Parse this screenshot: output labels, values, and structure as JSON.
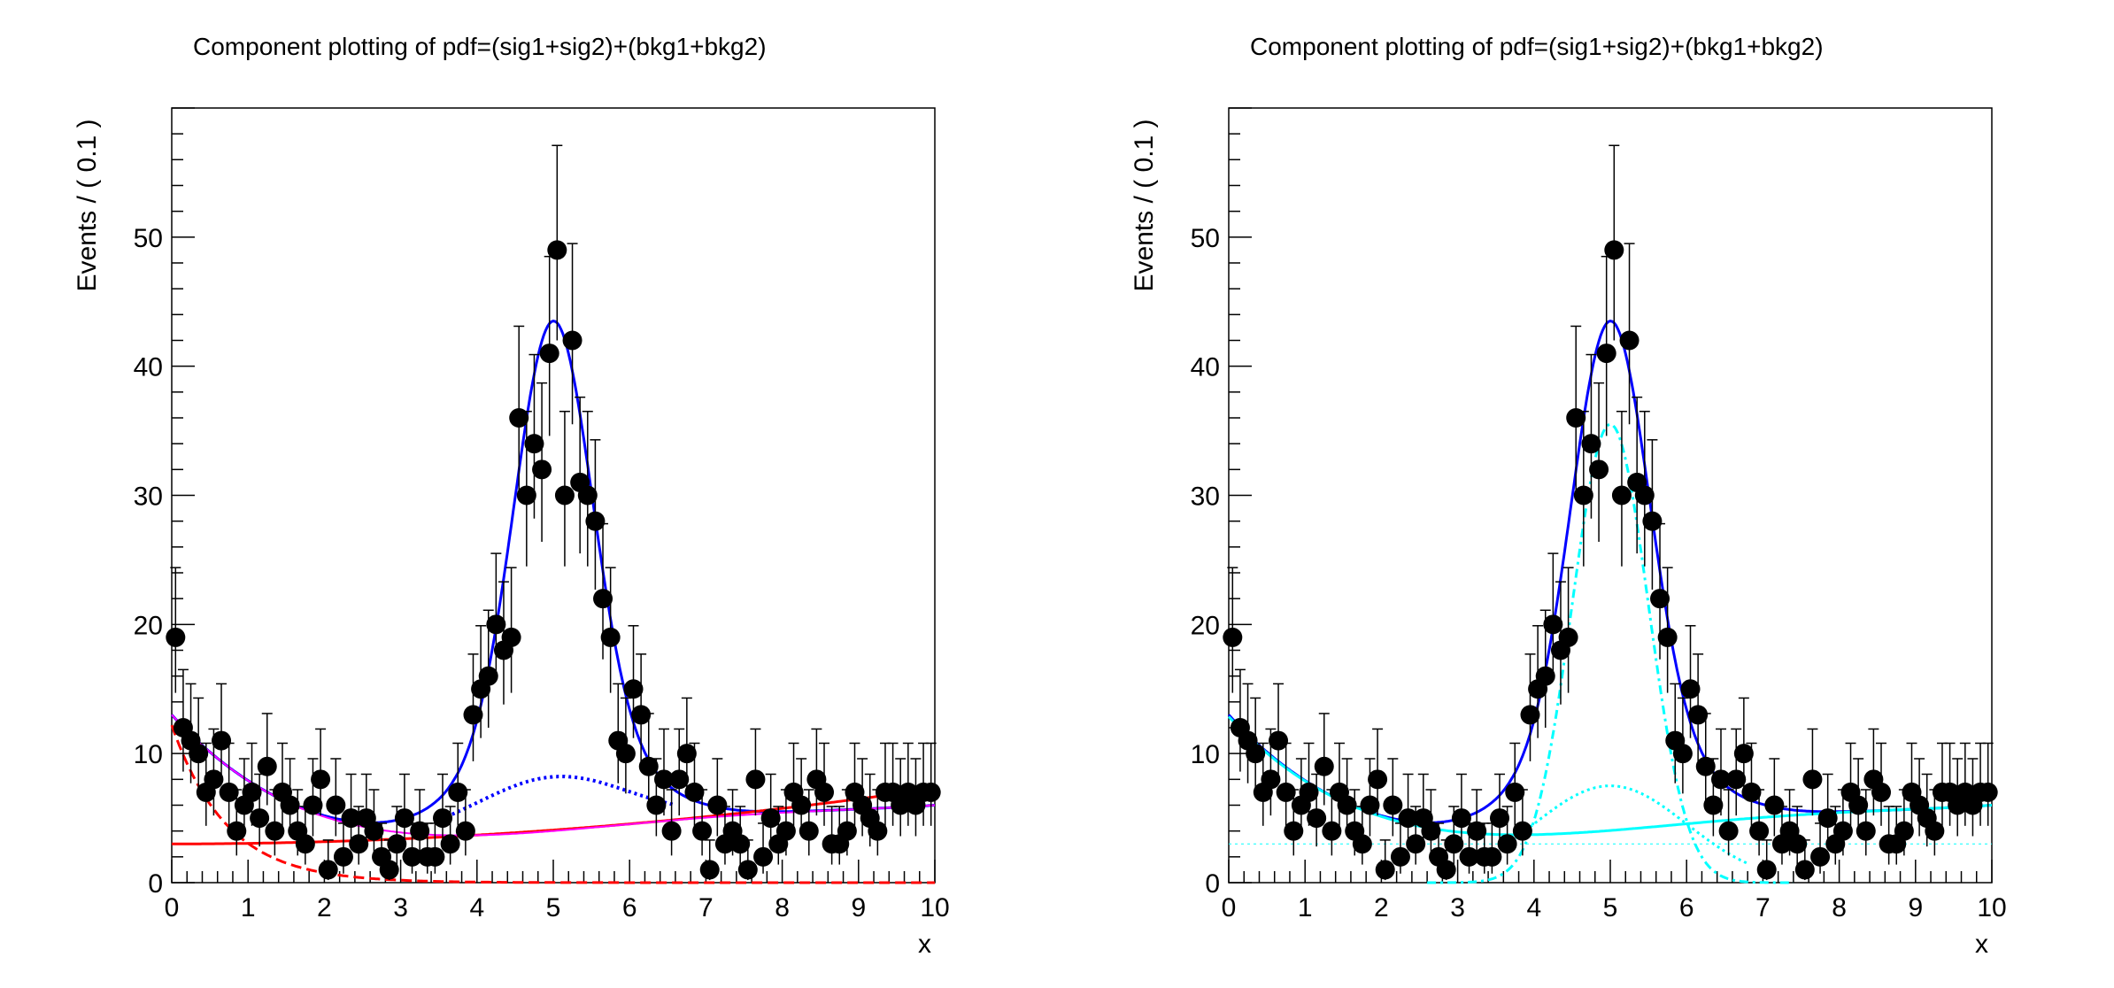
{
  "chart_data": [
    {
      "type": "scatter",
      "title": "Component plotting of pdf=(sig1+sig2)+(bkg1+bkg2)",
      "xlabel": "x",
      "ylabel": "Events / ( 0.1 )",
      "xlim": [
        0,
        10
      ],
      "ylim": [
        0,
        60
      ],
      "x_ticks": [
        "0",
        "1",
        "2",
        "3",
        "4",
        "5",
        "6",
        "7",
        "8",
        "9",
        "10"
      ],
      "y_ticks": [
        "0",
        "10",
        "20",
        "30",
        "40",
        "50"
      ],
      "grid": false,
      "legend": "none",
      "data": {
        "name": "data",
        "x": [
          0.05,
          0.15,
          0.25,
          0.35,
          0.45,
          0.55,
          0.65,
          0.75,
          0.85,
          0.95,
          1.05,
          1.15,
          1.25,
          1.35,
          1.45,
          1.55,
          1.65,
          1.75,
          1.85,
          1.95,
          2.05,
          2.15,
          2.25,
          2.35,
          2.45,
          2.55,
          2.65,
          2.75,
          2.85,
          2.95,
          3.05,
          3.15,
          3.25,
          3.35,
          3.45,
          3.55,
          3.65,
          3.75,
          3.85,
          3.95,
          4.05,
          4.15,
          4.25,
          4.35,
          4.45,
          4.55,
          4.65,
          4.75,
          4.85,
          4.95,
          5.05,
          5.15,
          5.25,
          5.35,
          5.45,
          5.55,
          5.65,
          5.75,
          5.85,
          5.95,
          6.05,
          6.15,
          6.25,
          6.35,
          6.45,
          6.55,
          6.65,
          6.75,
          6.85,
          6.95,
          7.05,
          7.15,
          7.25,
          7.35,
          7.45,
          7.55,
          7.65,
          7.75,
          7.85,
          7.95,
          8.05,
          8.15,
          8.25,
          8.35,
          8.45,
          8.55,
          8.65,
          8.75,
          8.85,
          8.95,
          9.05,
          9.15,
          9.25,
          9.35,
          9.45,
          9.55,
          9.65,
          9.75,
          9.85,
          9.95
        ],
        "y": [
          19,
          12,
          11,
          10,
          7,
          8,
          11,
          7,
          4,
          6,
          7,
          5,
          9,
          4,
          7,
          6,
          4,
          3,
          6,
          8,
          1,
          6,
          2,
          5,
          3,
          5,
          4,
          2,
          1,
          3,
          5,
          2,
          4,
          2,
          2,
          5,
          3,
          7,
          4,
          13,
          15,
          16,
          20,
          18,
          19,
          36,
          30,
          34,
          32,
          41,
          49,
          30,
          42,
          31,
          30,
          28,
          22,
          19,
          11,
          10,
          15,
          13,
          9,
          6,
          8,
          4,
          8,
          10,
          7,
          4,
          1,
          6,
          3,
          4,
          3,
          1,
          8,
          2,
          5,
          3,
          4,
          7,
          6,
          4,
          8,
          7,
          3,
          3,
          4,
          7,
          6,
          5,
          4,
          7,
          7,
          6,
          7,
          6,
          7,
          7
        ],
        "err_lo": [
          4.3,
          3.4,
          3.3,
          3.1,
          2.6,
          2.8,
          3.3,
          2.6,
          1.9,
          2.4,
          2.6,
          2.2,
          3.0,
          1.9,
          2.6,
          2.4,
          1.9,
          1.6,
          2.4,
          2.8,
          0.8,
          2.4,
          1.3,
          2.2,
          1.6,
          2.2,
          1.9,
          1.3,
          0.8,
          1.6,
          2.2,
          1.3,
          1.9,
          1.3,
          1.3,
          2.2,
          1.6,
          2.6,
          1.9,
          3.6,
          3.8,
          4.0,
          4.4,
          4.2,
          4.3,
          6.0,
          5.5,
          5.8,
          5.6,
          6.4,
          7.0,
          5.5,
          6.5,
          5.5,
          5.5,
          5.3,
          4.7,
          4.3,
          3.3,
          3.1,
          3.8,
          3.6,
          3.0,
          2.4,
          2.8,
          1.9,
          2.8,
          3.1,
          2.6,
          1.9,
          0.8,
          2.4,
          1.6,
          1.9,
          1.6,
          0.8,
          2.8,
          1.3,
          2.2,
          1.6,
          1.9,
          2.6,
          2.4,
          1.9,
          2.8,
          2.6,
          1.6,
          1.6,
          1.9,
          2.6,
          2.4,
          2.2,
          1.9,
          2.6,
          2.6,
          2.4,
          2.6,
          2.4,
          2.6,
          2.6
        ],
        "err_hi": [
          5.4,
          4.5,
          4.4,
          4.3,
          3.8,
          3.9,
          4.4,
          3.8,
          3.2,
          3.6,
          3.8,
          3.4,
          4.1,
          3.2,
          3.8,
          3.6,
          3.2,
          2.9,
          3.6,
          3.9,
          2.3,
          3.6,
          2.6,
          3.4,
          2.9,
          3.4,
          3.2,
          2.6,
          2.3,
          2.9,
          3.4,
          2.6,
          3.2,
          2.6,
          2.6,
          3.4,
          2.9,
          3.8,
          3.2,
          4.7,
          4.9,
          5.1,
          5.5,
          5.3,
          5.4,
          7.1,
          6.5,
          6.9,
          6.7,
          7.5,
          8.1,
          6.5,
          7.5,
          6.6,
          6.5,
          6.3,
          5.8,
          5.4,
          4.4,
          4.3,
          4.9,
          4.7,
          4.1,
          3.6,
          3.9,
          3.2,
          3.9,
          4.3,
          3.8,
          3.2,
          2.3,
          3.6,
          2.9,
          3.2,
          2.9,
          2.3,
          3.9,
          2.6,
          3.4,
          2.9,
          3.2,
          3.8,
          3.6,
          3.2,
          3.9,
          3.8,
          2.9,
          2.9,
          3.2,
          3.8,
          3.6,
          3.4,
          3.2,
          3.8,
          3.8,
          3.6,
          3.8,
          3.6,
          3.8,
          3.8
        ]
      },
      "components": [
        {
          "id": "total",
          "color": "#0000ff",
          "style": "solid",
          "width": 3
        },
        {
          "id": "sig",
          "color": "#0000ff",
          "style": "dotted",
          "width": 4
        },
        {
          "id": "bkg",
          "color": "#ff0000",
          "style": "solid",
          "width": 3
        },
        {
          "id": "bkg1",
          "color": "#ff0000",
          "style": "dashed",
          "width": 3
        },
        {
          "id": "bkg2",
          "color": "#ff00ff",
          "style": "solid",
          "width": 2
        }
      ]
    },
    {
      "type": "scatter",
      "title": "Component plotting of pdf=(sig1+sig2)+(bkg1+bkg2)",
      "xlabel": "x",
      "ylabel": "Events / ( 0.1 )",
      "xlim": [
        0,
        10
      ],
      "ylim": [
        0,
        60
      ],
      "x_ticks": [
        "0",
        "1",
        "2",
        "3",
        "4",
        "5",
        "6",
        "7",
        "8",
        "9",
        "10"
      ],
      "y_ticks": [
        "0",
        "10",
        "20",
        "30",
        "40",
        "50"
      ],
      "grid": false,
      "legend": "none",
      "data": "same as left panel",
      "components": [
        {
          "id": "total",
          "color": "#0000ff",
          "style": "solid",
          "width": 3
        },
        {
          "id": "sig1_bkg",
          "color": "#00ffff",
          "style": "solid",
          "width": 3
        },
        {
          "id": "sig1",
          "color": "#00ffff",
          "style": "dashdot",
          "width": 3
        },
        {
          "id": "sig2",
          "color": "#00ffff",
          "style": "dotted",
          "width": 3
        },
        {
          "id": "bkg_flat",
          "color": "#00ffff",
          "style": "dotted",
          "width": 1
        }
      ]
    }
  ]
}
